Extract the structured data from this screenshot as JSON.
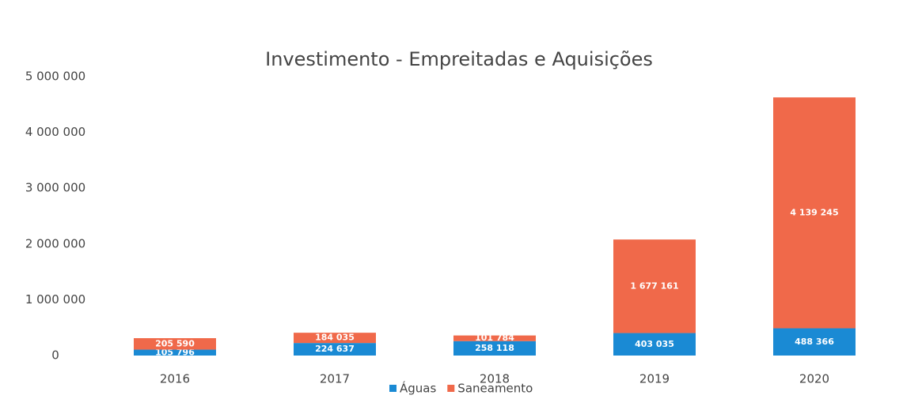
{
  "chart_data": {
    "type": "stacked_bar",
    "title": "Investimento - Empreitadas e Aquisições",
    "categories": [
      "2016",
      "2017",
      "2018",
      "2019",
      "2020"
    ],
    "series": [
      {
        "name": "Águas",
        "color": "#1a8ad4",
        "values": [
          105796,
          224637,
          258118,
          403035,
          488366
        ],
        "value_labels": [
          "105 796",
          "224 637",
          "258 118",
          "403 035",
          "488 366"
        ]
      },
      {
        "name": "Saneamento",
        "color": "#f0694a",
        "values": [
          205590,
          184035,
          101784,
          1677161,
          4139245
        ],
        "value_labels": [
          "205 590",
          "184 035",
          "101 784",
          "1 677 161",
          "4 139 245"
        ]
      }
    ],
    "ylim": [
      0,
      5000000
    ],
    "yticks": [
      0,
      {
        "value": 1000000,
        "label": "1 000 000"
      },
      {
        "value": 2000000,
        "label": "2 000 000"
      },
      {
        "value": 3000000,
        "label": "3 000 000"
      },
      {
        "value": 4000000,
        "label": "4 000 000"
      },
      {
        "value": 5000000,
        "label": "5 000 000"
      }
    ],
    "grid": false,
    "legend": "bottom"
  }
}
